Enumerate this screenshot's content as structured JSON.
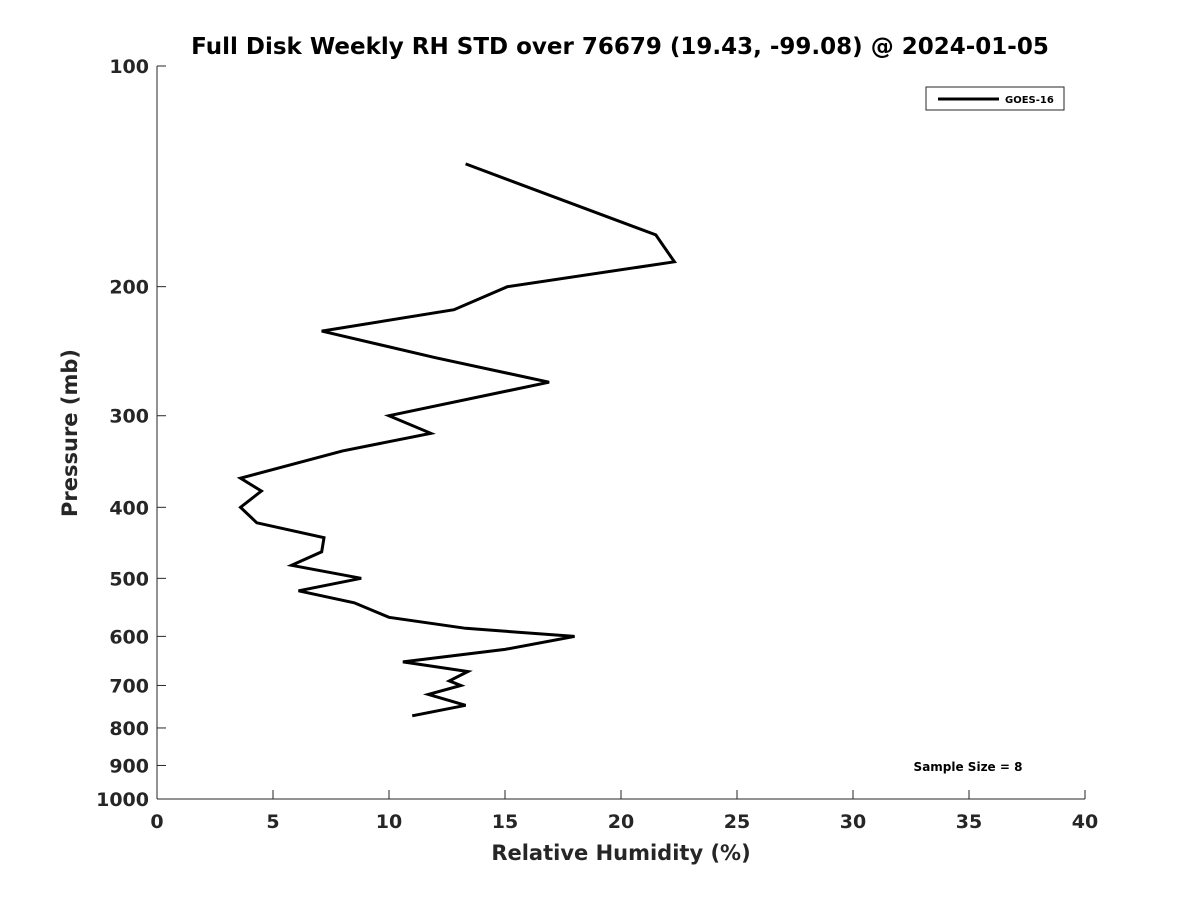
{
  "chart_data": {
    "type": "line",
    "title": "Full Disk Weekly RH STD over 76679 (19.43, -99.08) @ 2024-01-05",
    "xlabel": "Relative Humidity (%)",
    "ylabel": "Pressure (mb)",
    "xlim": [
      0,
      40
    ],
    "ylim": [
      100,
      1000
    ],
    "y_scale": "log",
    "y_inverted": true,
    "x_ticks": [
      0,
      5,
      10,
      15,
      20,
      25,
      30,
      35,
      40
    ],
    "y_ticks": [
      100,
      200,
      300,
      400,
      500,
      600,
      700,
      800,
      900,
      1000
    ],
    "grid": false,
    "legend_position": "top-right",
    "series": [
      {
        "name": "GOES-16",
        "color": "#000000",
        "points": [
          {
            "x": 13.3,
            "y": 136
          },
          {
            "x": 21.5,
            "y": 170
          },
          {
            "x": 22.3,
            "y": 185
          },
          {
            "x": 15.1,
            "y": 200
          },
          {
            "x": 12.8,
            "y": 215
          },
          {
            "x": 7.1,
            "y": 230
          },
          {
            "x": 12.0,
            "y": 250
          },
          {
            "x": 16.9,
            "y": 270
          },
          {
            "x": 10.0,
            "y": 300
          },
          {
            "x": 11.8,
            "y": 317
          },
          {
            "x": 8.0,
            "y": 335
          },
          {
            "x": 3.6,
            "y": 365
          },
          {
            "x": 4.5,
            "y": 380
          },
          {
            "x": 3.6,
            "y": 400
          },
          {
            "x": 4.3,
            "y": 420
          },
          {
            "x": 7.2,
            "y": 440
          },
          {
            "x": 7.1,
            "y": 460
          },
          {
            "x": 5.8,
            "y": 480
          },
          {
            "x": 8.8,
            "y": 500
          },
          {
            "x": 6.1,
            "y": 520
          },
          {
            "x": 8.5,
            "y": 540
          },
          {
            "x": 10.0,
            "y": 565
          },
          {
            "x": 13.3,
            "y": 585
          },
          {
            "x": 18.0,
            "y": 600
          },
          {
            "x": 15.0,
            "y": 625
          },
          {
            "x": 10.6,
            "y": 650
          },
          {
            "x": 13.4,
            "y": 670
          },
          {
            "x": 12.6,
            "y": 690
          },
          {
            "x": 13.1,
            "y": 700
          },
          {
            "x": 11.7,
            "y": 720
          },
          {
            "x": 13.3,
            "y": 745
          },
          {
            "x": 11.0,
            "y": 770
          }
        ]
      }
    ],
    "annotation": "Sample Size = 8"
  }
}
